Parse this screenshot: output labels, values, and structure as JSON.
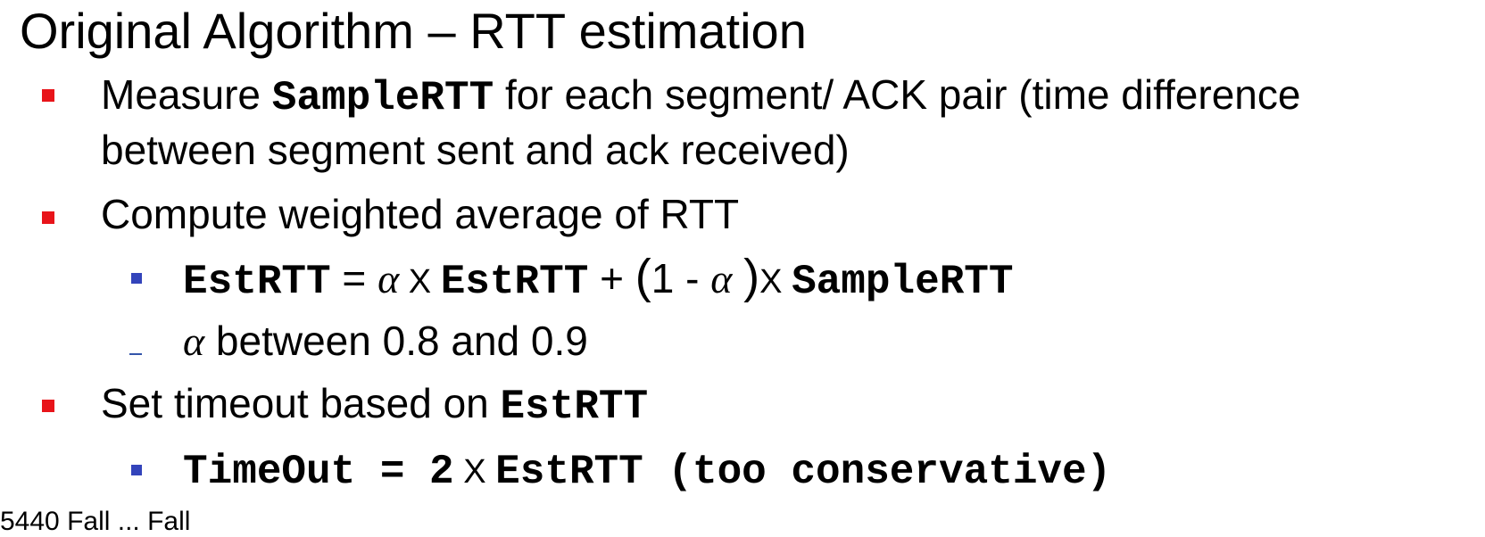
{
  "slide": {
    "title": "Original Algorithm – RTT estimation",
    "accent_colors": {
      "level1_bullet": "#e8141a",
      "level2_bullet": "#3344bb",
      "dash": "#3355aa"
    },
    "bullet1": {
      "pre": "Measure ",
      "code": "SampleRTT",
      "post": " for each segment/ ACK pair (time difference",
      "line2": "between segment sent and ack received)"
    },
    "bullet2": {
      "text": "Compute weighted average of RTT",
      "formula": {
        "lhs": "EstRTT",
        "eq": " = ",
        "alpha": "α",
        "times": " X ",
        "est": "EstRTT",
        "plus": " + ",
        "open": "(",
        "one_minus": "1 - ",
        "close": ")",
        "times2": "X ",
        "sample": "SampleRTT"
      },
      "note": {
        "alpha": "α",
        "text": " between 0.8 and 0.9"
      }
    },
    "bullet3": {
      "pre": "Set timeout based on ",
      "code": "EstRTT",
      "formula": {
        "lhs": "TimeOut = 2",
        "times": " X ",
        "rest": "EstRTT (too conservative)"
      }
    },
    "footer": "5440 Fall ... Fall"
  }
}
